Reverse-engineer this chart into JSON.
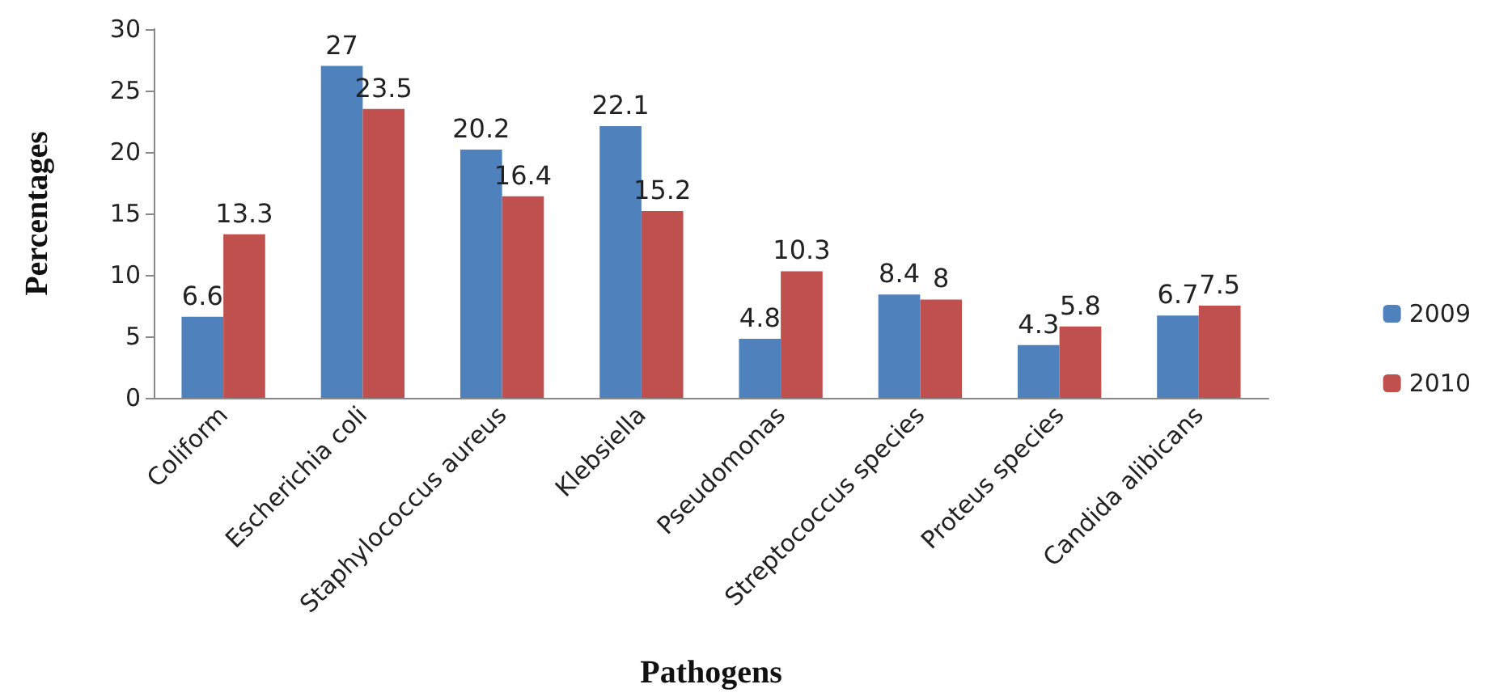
{
  "chart_data": {
    "type": "bar",
    "xlabel": "Pathogens",
    "ylabel": "Percentages",
    "categories": [
      "Coliform",
      "Escherichia coli",
      "Staphylococcus aureus",
      "Klebsiella",
      "Pseudomonas",
      "Streptococcus species",
      "Proteus species",
      "Candida alibicans"
    ],
    "series": [
      {
        "name": "2009",
        "color": "#4f81bd",
        "values": [
          6.6,
          27,
          20.2,
          22.1,
          4.8,
          8.4,
          4.3,
          6.7
        ]
      },
      {
        "name": "2010",
        "color": "#c0504d",
        "values": [
          13.3,
          23.5,
          16.4,
          15.2,
          10.3,
          8,
          5.8,
          7.5
        ]
      }
    ],
    "ylim": [
      0,
      30
    ],
    "yticks": [
      0,
      5,
      10,
      15,
      20,
      25,
      30
    ],
    "data_labels": true,
    "grid": false,
    "legend": "right"
  }
}
